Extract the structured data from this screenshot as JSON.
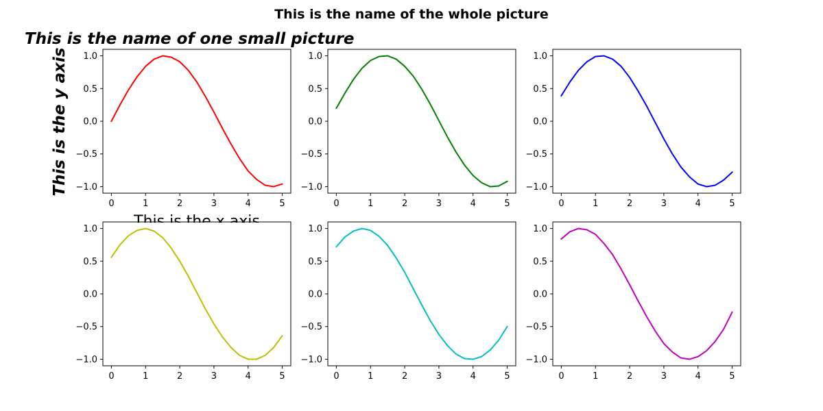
{
  "figure": {
    "suptitle": "This is the name of the whole picture"
  },
  "chart_data": [
    {
      "type": "line",
      "title": "This is the name of one small picture",
      "xlabel": "This is the x axis",
      "ylabel": "This is the y axis",
      "xlim": [
        -0.25,
        5.25
      ],
      "ylim": [
        -1.1,
        1.1
      ],
      "xticks": [
        "0",
        "1",
        "2",
        "3",
        "4",
        "5"
      ],
      "yticks": [
        "−1.0",
        "−0.5",
        "0.0",
        "0.5",
        "1.0"
      ],
      "grid": false,
      "series": [
        {
          "color": "#ff0000",
          "x": [
            0,
            0.25,
            0.5,
            0.75,
            1,
            1.25,
            1.5,
            1.75,
            2,
            2.25,
            2.5,
            2.75,
            3,
            3.25,
            3.5,
            3.75,
            4,
            4.25,
            4.5,
            4.75,
            5
          ],
          "y": [
            0.0,
            0.25,
            0.48,
            0.68,
            0.84,
            0.95,
            1.0,
            0.98,
            0.91,
            0.78,
            0.6,
            0.38,
            0.14,
            -0.11,
            -0.35,
            -0.57,
            -0.76,
            -0.89,
            -0.98,
            -1.0,
            -0.96
          ]
        }
      ]
    },
    {
      "type": "line",
      "xlim": [
        -0.25,
        5.25
      ],
      "ylim": [
        -1.1,
        1.1
      ],
      "xticks": [
        "0",
        "1",
        "2",
        "3",
        "4",
        "5"
      ],
      "yticks": [
        "−1.0",
        "−0.5",
        "0.0",
        "0.5",
        "1.0"
      ],
      "grid": false,
      "series": [
        {
          "color": "#008000",
          "x": [
            0,
            0.25,
            0.5,
            0.75,
            1,
            1.25,
            1.5,
            1.75,
            2,
            2.25,
            2.5,
            2.75,
            3,
            3.25,
            3.5,
            3.75,
            4,
            4.25,
            4.5,
            4.75,
            5
          ],
          "y": [
            0.2,
            0.43,
            0.64,
            0.81,
            0.93,
            0.99,
            1.0,
            0.95,
            0.84,
            0.69,
            0.49,
            0.26,
            0.01,
            -0.24,
            -0.47,
            -0.67,
            -0.83,
            -0.94,
            -1.0,
            -0.99,
            -0.92
          ]
        }
      ]
    },
    {
      "type": "line",
      "xlim": [
        -0.25,
        5.25
      ],
      "ylim": [
        -1.1,
        1.1
      ],
      "xticks": [
        "0",
        "1",
        "2",
        "3",
        "4",
        "5"
      ],
      "yticks": [
        "−1.0",
        "−0.5",
        "0.0",
        "0.5",
        "1.0"
      ],
      "grid": false,
      "series": [
        {
          "color": "#0000ff",
          "x": [
            0,
            0.25,
            0.5,
            0.75,
            1,
            1.25,
            1.5,
            1.75,
            2,
            2.25,
            2.5,
            2.75,
            3,
            3.25,
            3.5,
            3.75,
            4,
            4.25,
            4.5,
            4.75,
            5
          ],
          "y": [
            0.39,
            0.6,
            0.78,
            0.91,
            0.99,
            1.0,
            0.95,
            0.84,
            0.67,
            0.46,
            0.23,
            -0.02,
            -0.27,
            -0.5,
            -0.7,
            -0.85,
            -0.96,
            -1.0,
            -0.98,
            -0.9,
            -0.78
          ]
        }
      ]
    },
    {
      "type": "line",
      "xlim": [
        -0.25,
        5.25
      ],
      "ylim": [
        -1.1,
        1.1
      ],
      "xticks": [
        "0",
        "1",
        "2",
        "3",
        "4",
        "5"
      ],
      "yticks": [
        "−1.0",
        "−0.5",
        "0.0",
        "0.5",
        "1.0"
      ],
      "grid": false,
      "series": [
        {
          "color": "#bfbf00",
          "x": [
            0,
            0.25,
            0.5,
            0.75,
            1,
            1.25,
            1.5,
            1.75,
            2,
            2.25,
            2.5,
            2.75,
            3,
            3.25,
            3.5,
            3.75,
            4,
            4.25,
            4.5,
            4.75,
            5
          ],
          "y": [
            0.56,
            0.75,
            0.89,
            0.97,
            1.0,
            0.96,
            0.86,
            0.7,
            0.5,
            0.27,
            0.02,
            -0.23,
            -0.46,
            -0.66,
            -0.82,
            -0.94,
            -1.0,
            -1.0,
            -0.94,
            -0.82,
            -0.64
          ]
        }
      ]
    },
    {
      "type": "line",
      "xlim": [
        -0.25,
        5.25
      ],
      "ylim": [
        -1.1,
        1.1
      ],
      "xticks": [
        "0",
        "1",
        "2",
        "3",
        "4",
        "5"
      ],
      "yticks": [
        "−1.0",
        "−0.5",
        "0.0",
        "0.5",
        "1.0"
      ],
      "grid": false,
      "series": [
        {
          "color": "#00bfbf",
          "x": [
            0,
            0.25,
            0.5,
            0.75,
            1,
            1.25,
            1.5,
            1.75,
            2,
            2.25,
            2.5,
            2.75,
            3,
            3.25,
            3.5,
            3.75,
            4,
            4.25,
            4.5,
            4.75,
            5
          ],
          "y": [
            0.72,
            0.87,
            0.96,
            1.0,
            0.97,
            0.88,
            0.74,
            0.55,
            0.33,
            0.08,
            -0.17,
            -0.41,
            -0.62,
            -0.79,
            -0.92,
            -0.99,
            -1.0,
            -0.96,
            -0.86,
            -0.71,
            -0.5
          ]
        }
      ]
    },
    {
      "type": "line",
      "xlim": [
        -0.25,
        5.25
      ],
      "ylim": [
        -1.1,
        1.1
      ],
      "xticks": [
        "0",
        "1",
        "2",
        "3",
        "4",
        "5"
      ],
      "yticks": [
        "−1.0",
        "−0.5",
        "0.0",
        "0.5",
        "1.0"
      ],
      "grid": false,
      "series": [
        {
          "color": "#bf00bf",
          "x": [
            0,
            0.25,
            0.5,
            0.75,
            1,
            1.25,
            1.5,
            1.75,
            2,
            2.25,
            2.5,
            2.75,
            3,
            3.25,
            3.5,
            3.75,
            4,
            4.25,
            4.5,
            4.75,
            5
          ],
          "y": [
            0.84,
            0.95,
            1.0,
            0.98,
            0.91,
            0.77,
            0.6,
            0.38,
            0.14,
            -0.11,
            -0.35,
            -0.57,
            -0.76,
            -0.89,
            -0.98,
            -1.0,
            -0.96,
            -0.87,
            -0.73,
            -0.54,
            -0.28
          ]
        }
      ]
    }
  ]
}
